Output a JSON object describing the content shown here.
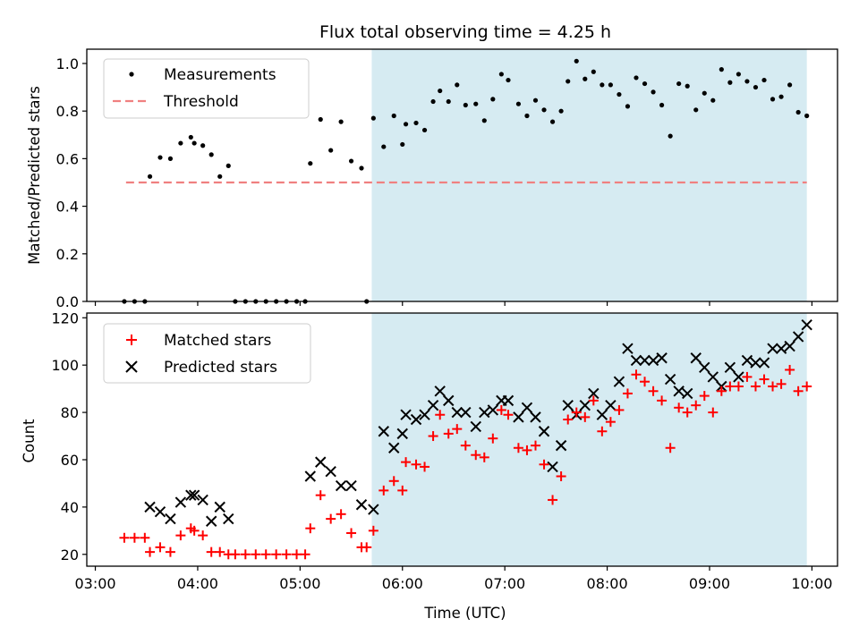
{
  "chart_data": [
    {
      "type": "scatter",
      "title": "Flux total observing time = 4.25 h",
      "xlabel": "",
      "ylabel": "Matched/Predicted stars",
      "xlim": [
        "02:55",
        "10:15"
      ],
      "ylim": [
        0,
        1.06
      ],
      "yticks": [
        "0.0",
        "0.2",
        "0.4",
        "0.6",
        "0.8",
        "1.0"
      ],
      "legend": {
        "placement": "upper-left",
        "entries": [
          "Measurements",
          "Threshold"
        ]
      },
      "shaded_interval": [
        "05:42",
        "09:57"
      ],
      "threshold": {
        "name": "Threshold",
        "x": [
          "03:18",
          "09:57"
        ],
        "y": 0.5,
        "color": "#f08080"
      },
      "series": [
        {
          "name": "Measurements",
          "color": "#000000",
          "points": [
            [
              "03:17",
              0.0
            ],
            [
              "03:23",
              0.0
            ],
            [
              "03:29",
              0.0
            ],
            [
              "03:32",
              0.525
            ],
            [
              "03:38",
              0.605
            ],
            [
              "03:44",
              0.6
            ],
            [
              "03:50",
              0.665
            ],
            [
              "03:56",
              0.69
            ],
            [
              "03:58",
              0.665
            ],
            [
              "04:03",
              0.655
            ],
            [
              "04:08",
              0.617
            ],
            [
              "04:13",
              0.525
            ],
            [
              "04:18",
              0.57
            ],
            [
              "04:22",
              0.0
            ],
            [
              "04:28",
              0.0
            ],
            [
              "04:34",
              0.0
            ],
            [
              "04:40",
              0.0
            ],
            [
              "04:46",
              0.0
            ],
            [
              "04:52",
              0.0
            ],
            [
              "04:58",
              0.0
            ],
            [
              "05:03",
              0.0
            ],
            [
              "05:06",
              0.58
            ],
            [
              "05:12",
              0.765
            ],
            [
              "05:18",
              0.635
            ],
            [
              "05:24",
              0.755
            ],
            [
              "05:30",
              0.59
            ],
            [
              "05:36",
              0.56
            ],
            [
              "05:39",
              0.0
            ],
            [
              "05:43",
              0.77
            ],
            [
              "05:49",
              0.65
            ],
            [
              "05:55",
              0.78
            ],
            [
              "06:00",
              0.66
            ],
            [
              "06:02",
              0.745
            ],
            [
              "06:08",
              0.75
            ],
            [
              "06:13",
              0.72
            ],
            [
              "06:18",
              0.84
            ],
            [
              "06:22",
              0.885
            ],
            [
              "06:27",
              0.84
            ],
            [
              "06:32",
              0.91
            ],
            [
              "06:37",
              0.825
            ],
            [
              "06:43",
              0.83
            ],
            [
              "06:48",
              0.76
            ],
            [
              "06:53",
              0.85
            ],
            [
              "06:58",
              0.955
            ],
            [
              "07:02",
              0.93
            ],
            [
              "07:08",
              0.83
            ],
            [
              "07:13",
              0.78
            ],
            [
              "07:18",
              0.845
            ],
            [
              "07:23",
              0.805
            ],
            [
              "07:28",
              0.755
            ],
            [
              "07:33",
              0.8
            ],
            [
              "07:37",
              0.925
            ],
            [
              "07:42",
              1.01
            ],
            [
              "07:47",
              0.935
            ],
            [
              "07:52",
              0.965
            ],
            [
              "07:57",
              0.91
            ],
            [
              "08:02",
              0.91
            ],
            [
              "08:07",
              0.87
            ],
            [
              "08:12",
              0.82
            ],
            [
              "08:17",
              0.94
            ],
            [
              "08:22",
              0.915
            ],
            [
              "08:27",
              0.88
            ],
            [
              "08:32",
              0.825
            ],
            [
              "08:37",
              0.695
            ],
            [
              "08:42",
              0.915
            ],
            [
              "08:47",
              0.905
            ],
            [
              "08:52",
              0.805
            ],
            [
              "08:57",
              0.875
            ],
            [
              "09:02",
              0.845
            ],
            [
              "09:07",
              0.975
            ],
            [
              "09:12",
              0.92
            ],
            [
              "09:17",
              0.955
            ],
            [
              "09:22",
              0.925
            ],
            [
              "09:27",
              0.9
            ],
            [
              "09:32",
              0.93
            ],
            [
              "09:37",
              0.85
            ],
            [
              "09:42",
              0.86
            ],
            [
              "09:47",
              0.91
            ],
            [
              "09:52",
              0.795
            ],
            [
              "09:57",
              0.78
            ]
          ]
        }
      ]
    },
    {
      "type": "scatter",
      "title": "",
      "xlabel": "Time (UTC)",
      "ylabel": "Count",
      "xlim": [
        "02:55",
        "10:15"
      ],
      "ylim": [
        15,
        122
      ],
      "yticks": [
        "20",
        "40",
        "60",
        "80",
        "100",
        "120"
      ],
      "xticks": [
        "03:00",
        "04:00",
        "05:00",
        "06:00",
        "07:00",
        "08:00",
        "09:00",
        "10:00"
      ],
      "legend": {
        "placement": "upper-left",
        "entries": [
          "Matched stars",
          "Predicted stars"
        ]
      },
      "shaded_interval": [
        "05:42",
        "09:57"
      ],
      "series": [
        {
          "name": "Matched stars",
          "color": "#ff0000",
          "marker": "plus",
          "points": [
            [
              "03:17",
              27
            ],
            [
              "03:23",
              27
            ],
            [
              "03:29",
              27
            ],
            [
              "03:32",
              21
            ],
            [
              "03:38",
              23
            ],
            [
              "03:44",
              21
            ],
            [
              "03:50",
              28
            ],
            [
              "03:56",
              31
            ],
            [
              "03:58",
              30
            ],
            [
              "04:03",
              28
            ],
            [
              "04:08",
              21
            ],
            [
              "04:13",
              21
            ],
            [
              "04:18",
              20
            ],
            [
              "04:22",
              20
            ],
            [
              "04:28",
              20
            ],
            [
              "04:34",
              20
            ],
            [
              "04:40",
              20
            ],
            [
              "04:46",
              20
            ],
            [
              "04:52",
              20
            ],
            [
              "04:58",
              20
            ],
            [
              "05:03",
              20
            ],
            [
              "05:06",
              31
            ],
            [
              "05:12",
              45
            ],
            [
              "05:18",
              35
            ],
            [
              "05:24",
              37
            ],
            [
              "05:30",
              29
            ],
            [
              "05:36",
              23
            ],
            [
              "05:39",
              23
            ],
            [
              "05:43",
              30
            ],
            [
              "05:49",
              47
            ],
            [
              "05:55",
              51
            ],
            [
              "06:00",
              47
            ],
            [
              "06:02",
              59
            ],
            [
              "06:08",
              58
            ],
            [
              "06:13",
              57
            ],
            [
              "06:18",
              70
            ],
            [
              "06:22",
              79
            ],
            [
              "06:27",
              71
            ],
            [
              "06:32",
              73
            ],
            [
              "06:37",
              66
            ],
            [
              "06:43",
              62
            ],
            [
              "06:48",
              61
            ],
            [
              "06:53",
              69
            ],
            [
              "06:58",
              81
            ],
            [
              "07:02",
              79
            ],
            [
              "07:08",
              65
            ],
            [
              "07:13",
              64
            ],
            [
              "07:18",
              66
            ],
            [
              "07:23",
              58
            ],
            [
              "07:28",
              43
            ],
            [
              "07:33",
              53
            ],
            [
              "07:37",
              77
            ],
            [
              "07:42",
              80
            ],
            [
              "07:47",
              78
            ],
            [
              "07:52",
              85
            ],
            [
              "07:57",
              72
            ],
            [
              "08:02",
              76
            ],
            [
              "08:07",
              81
            ],
            [
              "08:12",
              88
            ],
            [
              "08:17",
              96
            ],
            [
              "08:22",
              93
            ],
            [
              "08:27",
              89
            ],
            [
              "08:32",
              85
            ],
            [
              "08:37",
              65
            ],
            [
              "08:42",
              82
            ],
            [
              "08:47",
              80
            ],
            [
              "08:52",
              83
            ],
            [
              "08:57",
              87
            ],
            [
              "09:02",
              80
            ],
            [
              "09:07",
              89
            ],
            [
              "09:12",
              91
            ],
            [
              "09:17",
              91
            ],
            [
              "09:22",
              95
            ],
            [
              "09:27",
              91
            ],
            [
              "09:32",
              94
            ],
            [
              "09:37",
              91
            ],
            [
              "09:42",
              92
            ],
            [
              "09:47",
              98
            ],
            [
              "09:52",
              89
            ],
            [
              "09:57",
              91
            ]
          ]
        },
        {
          "name": "Predicted stars",
          "color": "#000000",
          "marker": "x",
          "points": [
            [
              "03:32",
              40
            ],
            [
              "03:38",
              38
            ],
            [
              "03:44",
              35
            ],
            [
              "03:50",
              42
            ],
            [
              "03:56",
              45
            ],
            [
              "03:58",
              45
            ],
            [
              "04:03",
              43
            ],
            [
              "04:08",
              34
            ],
            [
              "04:13",
              40
            ],
            [
              "04:18",
              35
            ],
            [
              "05:06",
              53
            ],
            [
              "05:12",
              59
            ],
            [
              "05:18",
              55
            ],
            [
              "05:24",
              49
            ],
            [
              "05:30",
              49
            ],
            [
              "05:36",
              41
            ],
            [
              "05:43",
              39
            ],
            [
              "05:49",
              72
            ],
            [
              "05:55",
              65
            ],
            [
              "06:00",
              71
            ],
            [
              "06:02",
              79
            ],
            [
              "06:08",
              77
            ],
            [
              "06:13",
              79
            ],
            [
              "06:18",
              83
            ],
            [
              "06:22",
              89
            ],
            [
              "06:27",
              85
            ],
            [
              "06:32",
              80
            ],
            [
              "06:37",
              80
            ],
            [
              "06:43",
              74
            ],
            [
              "06:48",
              80
            ],
            [
              "06:53",
              81
            ],
            [
              "06:58",
              85
            ],
            [
              "07:02",
              85
            ],
            [
              "07:08",
              78
            ],
            [
              "07:13",
              82
            ],
            [
              "07:18",
              78
            ],
            [
              "07:23",
              72
            ],
            [
              "07:28",
              57
            ],
            [
              "07:33",
              66
            ],
            [
              "07:37",
              83
            ],
            [
              "07:42",
              79
            ],
            [
              "07:47",
              83
            ],
            [
              "07:52",
              88
            ],
            [
              "07:57",
              79
            ],
            [
              "08:02",
              83
            ],
            [
              "08:07",
              93
            ],
            [
              "08:12",
              107
            ],
            [
              "08:17",
              102
            ],
            [
              "08:22",
              102
            ],
            [
              "08:27",
              102
            ],
            [
              "08:32",
              103
            ],
            [
              "08:37",
              94
            ],
            [
              "08:42",
              89
            ],
            [
              "08:47",
              88
            ],
            [
              "08:52",
              103
            ],
            [
              "08:57",
              99
            ],
            [
              "09:02",
              95
            ],
            [
              "09:07",
              91
            ],
            [
              "09:12",
              99
            ],
            [
              "09:17",
              95
            ],
            [
              "09:22",
              102
            ],
            [
              "09:27",
              101
            ],
            [
              "09:32",
              101
            ],
            [
              "09:37",
              107
            ],
            [
              "09:42",
              107
            ],
            [
              "09:47",
              108
            ],
            [
              "09:52",
              112
            ],
            [
              "09:57",
              117
            ]
          ]
        }
      ]
    }
  ]
}
